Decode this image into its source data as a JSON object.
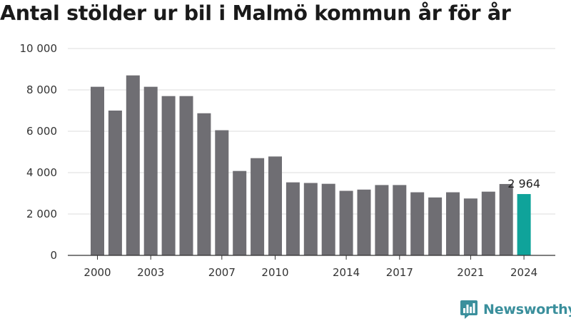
{
  "title": "Antal stölder ur bil i Malmö kommun år för år",
  "brand": {
    "name": "Newsworthy",
    "logo_icon": "newsworthy-chart-bubble-icon"
  },
  "colors": {
    "bar": "#6f6e73",
    "highlight": "#0fa39a",
    "grid": "#dcdcdc",
    "axis": "#333333",
    "brand": "#3a8f9c"
  },
  "chart_data": {
    "type": "bar",
    "title": "Antal stölder ur bil i Malmö kommun år för år",
    "xlabel": "",
    "ylabel": "",
    "categories": [
      "2000",
      "2001",
      "2002",
      "2003",
      "2004",
      "2005",
      "2006",
      "2007",
      "2008",
      "2009",
      "2010",
      "2011",
      "2012",
      "2013",
      "2014",
      "2015",
      "2016",
      "2017",
      "2018",
      "2019",
      "2020",
      "2021",
      "2022",
      "2023",
      "2024"
    ],
    "x_tick_labels": [
      "2000",
      "2003",
      "2007",
      "2010",
      "2014",
      "2017",
      "2021",
      "2024"
    ],
    "values": [
      8150,
      7000,
      8700,
      8150,
      7700,
      7700,
      6870,
      6050,
      4080,
      4700,
      4780,
      3530,
      3500,
      3460,
      3120,
      3180,
      3400,
      3400,
      3050,
      2800,
      3050,
      2750,
      3080,
      3450,
      2964
    ],
    "highlight_index": 24,
    "highlight_label": "2 964",
    "ylim": [
      0,
      10000
    ],
    "yticks": [
      0,
      2000,
      4000,
      6000,
      8000,
      10000
    ],
    "ytick_labels": [
      "0",
      "2 000",
      "4 000",
      "6 000",
      "8 000",
      "10 000"
    ],
    "grid": true,
    "legend": "none"
  }
}
